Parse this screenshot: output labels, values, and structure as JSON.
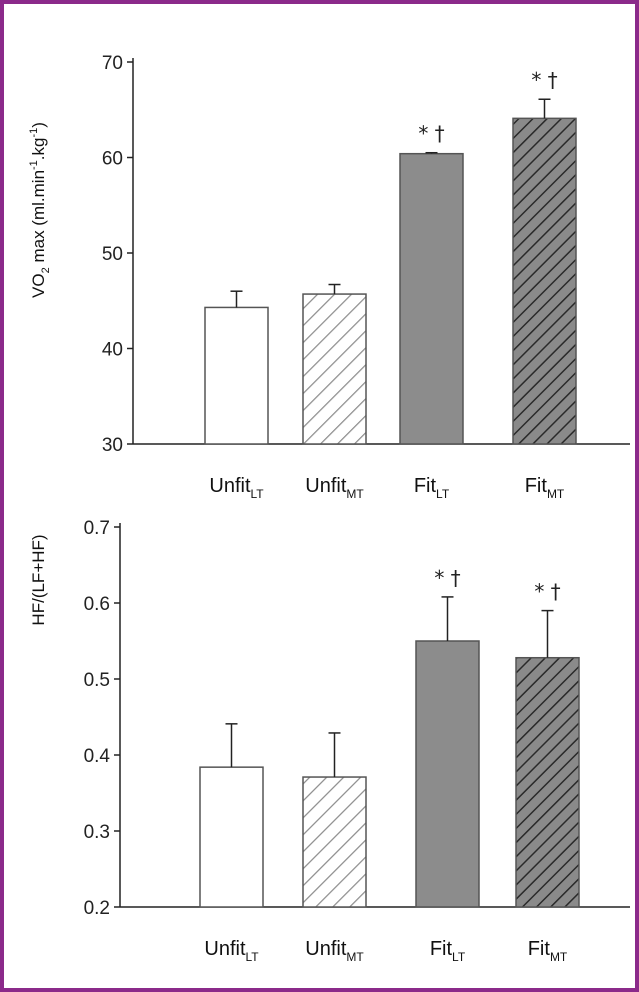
{
  "colors": {
    "frame": "#8b2a8a",
    "axis": "#222222",
    "open_fill": "#ffffff",
    "fit_fill": "#8c8c8c",
    "hatch_light": "#8a8a8a",
    "hatch_dark": "#2a2a2a",
    "bar_border": "#555555"
  },
  "chart_data": [
    {
      "type": "bar",
      "ylabel_html_parts": [
        "VO",
        "2",
        " max (ml.min",
        "-1",
        ".kg",
        "-1",
        ")"
      ],
      "ylim": [
        30,
        70
      ],
      "yticks": [
        30,
        40,
        50,
        60,
        70
      ],
      "categories": [
        {
          "main": "Unfit",
          "sub": "LT"
        },
        {
          "main": "Unfit",
          "sub": "MT"
        },
        {
          "main": "Fit",
          "sub": "LT"
        },
        {
          "main": "Fit",
          "sub": "MT"
        }
      ],
      "values": [
        44.3,
        45.7,
        60.4,
        64.1
      ],
      "errors": [
        1.7,
        1.0,
        0.1,
        2.0
      ],
      "styles": [
        "open",
        "hatch-light",
        "solid-gray",
        "hatch-dark"
      ],
      "annotations": [
        "",
        "",
        "* †",
        "* †"
      ]
    },
    {
      "type": "bar",
      "ylabel": "HF/(LF+HF)",
      "ylim": [
        0.2,
        0.7
      ],
      "yticks": [
        0.2,
        0.3,
        0.4,
        0.5,
        0.6,
        0.7
      ],
      "ytick_labels": [
        "0.2",
        "0.3",
        "0.4",
        "0.5",
        "0.6",
        "0.7"
      ],
      "categories": [
        {
          "main": "Unfit",
          "sub": "LT"
        },
        {
          "main": "Unfit",
          "sub": "MT"
        },
        {
          "main": "Fit",
          "sub": "LT"
        },
        {
          "main": "Fit",
          "sub": "MT"
        }
      ],
      "values": [
        0.384,
        0.371,
        0.55,
        0.528
      ],
      "errors": [
        0.057,
        0.058,
        0.058,
        0.062
      ],
      "styles": [
        "open",
        "hatch-light",
        "solid-gray",
        "hatch-dark"
      ],
      "annotations": [
        "",
        "",
        "* †",
        "* †"
      ]
    }
  ]
}
